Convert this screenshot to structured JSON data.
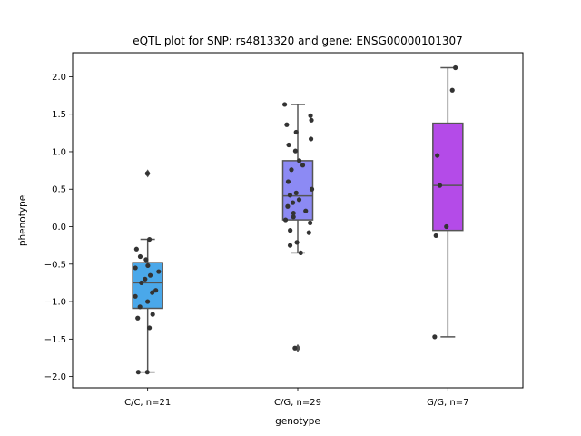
{
  "chart_data": {
    "type": "box",
    "title": "eQTL plot for SNP: rs4813320 and gene: ENSG00000101307",
    "xlabel": "genotype",
    "ylabel": "phenotype",
    "ylim": [
      -2.15,
      2.32
    ],
    "yticks": [
      -2.0,
      -1.5,
      -1.0,
      -0.5,
      0.0,
      0.5,
      1.0,
      1.5,
      2.0
    ],
    "ytick_labels": [
      "−2.0",
      "−1.5",
      "−1.0",
      "−0.5",
      "0.0",
      "0.5",
      "1.0",
      "1.5",
      "2.0"
    ],
    "grid": false,
    "categories": [
      "C/C, n=21",
      "C/G, n=29",
      "G/G, n=7"
    ],
    "boxes": [
      {
        "category": "C/C, n=21",
        "color": "#4aa8ea",
        "q1": -1.09,
        "median": -0.75,
        "q3": -0.48,
        "whisker_low": -1.94,
        "whisker_high": -0.17,
        "outliers": [
          0.71
        ]
      },
      {
        "category": "C/G, n=29",
        "color": "#8c8af4",
        "q1": 0.09,
        "median": 0.41,
        "q3": 0.88,
        "whisker_low": -0.35,
        "whisker_high": 1.63,
        "outliers": [
          -1.62
        ]
      },
      {
        "category": "G/G, n=7",
        "color": "#b44be8",
        "q1": -0.05,
        "median": 0.55,
        "q3": 1.38,
        "whisker_low": -1.47,
        "whisker_high": 2.12,
        "outliers": []
      }
    ],
    "points": [
      {
        "category": "C/C, n=21",
        "y": [
          0.71,
          -0.17,
          -0.3,
          -0.4,
          -0.44,
          -0.52,
          -0.55,
          -0.6,
          -0.65,
          -0.7,
          -0.75,
          -0.85,
          -0.88,
          -0.93,
          -1.0,
          -1.07,
          -1.17,
          -1.22,
          -1.35,
          -1.94,
          -1.94
        ]
      },
      {
        "category": "C/G, n=29",
        "y": [
          1.63,
          1.48,
          1.42,
          1.36,
          1.26,
          1.17,
          1.09,
          1.01,
          0.88,
          0.82,
          0.76,
          0.6,
          0.5,
          0.45,
          0.42,
          0.36,
          0.32,
          0.27,
          0.21,
          0.18,
          0.13,
          0.09,
          0.05,
          -0.05,
          -0.08,
          -0.21,
          -0.25,
          -0.35,
          -1.62
        ]
      },
      {
        "category": "G/G, n=7",
        "y": [
          2.12,
          1.82,
          0.95,
          0.55,
          0.0,
          -0.12,
          -1.47
        ]
      }
    ],
    "marker_color": "#333333",
    "line_color": "#555555"
  }
}
